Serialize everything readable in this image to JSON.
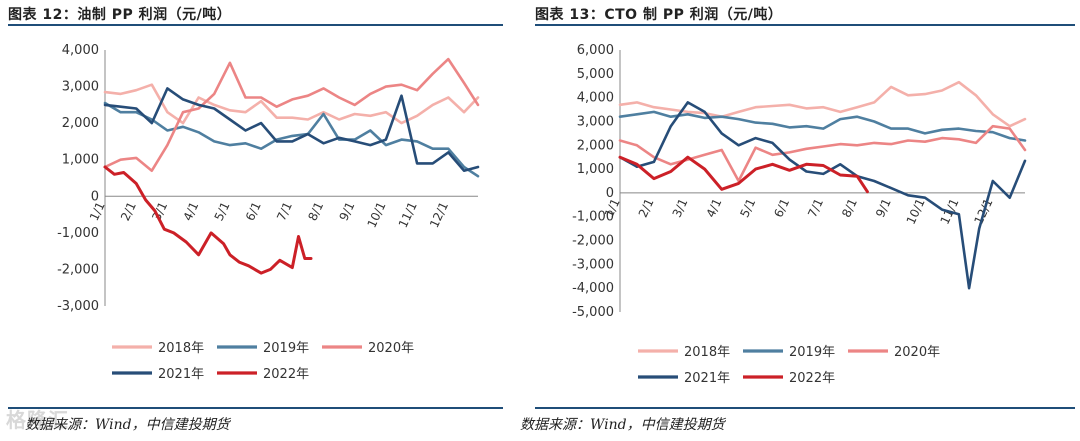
{
  "left": {
    "title": "图表 12：油制 PP 利润（元/吨）",
    "source": "数据来源：Wind，中信建投期货"
  },
  "right": {
    "title": "图表 13：CTO 制 PP 利润（元/吨）",
    "source": "数据来源：Wind，中信建投期货"
  },
  "watermark": "格隆汇",
  "chart_data": [
    {
      "type": "line",
      "title": "油制PP利润（元/吨）",
      "xlabel": "",
      "ylabel": "",
      "ylim": [
        -3000,
        4000
      ],
      "yticks": [
        -3000,
        -2000,
        -1000,
        0,
        1000,
        2000,
        3000,
        4000
      ],
      "ytick_labels": [
        "-3,000",
        "-2,000",
        "-1,000",
        "0",
        "1,000",
        "2,000",
        "3,000",
        "4,000"
      ],
      "x_categories": [
        "1/1",
        "2/1",
        "3/1",
        "4/1",
        "5/1",
        "6/1",
        "7/1",
        "8/1",
        "9/1",
        "10/1",
        "11/1",
        "12/1"
      ],
      "x_tick_pos": [
        0,
        1,
        2,
        3,
        4,
        5,
        6,
        7,
        8,
        9,
        10,
        11
      ],
      "xlim": [
        0,
        11.95
      ],
      "legend_position": "bottom",
      "series": [
        {
          "name": "2018年",
          "color": "#f4b0aa",
          "x": [
            0,
            0.5,
            1,
            1.5,
            2,
            2.5,
            3,
            3.5,
            4,
            4.5,
            5,
            5.5,
            6,
            6.5,
            7,
            7.5,
            8,
            8.5,
            9,
            9.5,
            10,
            10.5,
            11,
            11.5,
            11.95
          ],
          "values": [
            2850,
            2800,
            2900,
            3050,
            2300,
            2000,
            2700,
            2500,
            2350,
            2300,
            2600,
            2150,
            2150,
            2100,
            2300,
            2100,
            2250,
            2200,
            2300,
            2000,
            2200,
            2500,
            2700,
            2300,
            2700
          ]
        },
        {
          "name": "2019年",
          "color": "#4f7fa0",
          "x": [
            0,
            0.5,
            1,
            1.5,
            2,
            2.5,
            3,
            3.5,
            4,
            4.5,
            5,
            5.5,
            6,
            6.5,
            7,
            7.5,
            8,
            8.5,
            9,
            9.5,
            10,
            10.5,
            11,
            11.5,
            11.95
          ],
          "values": [
            2550,
            2300,
            2300,
            2100,
            1800,
            1900,
            1750,
            1500,
            1400,
            1450,
            1300,
            1550,
            1650,
            1700,
            2250,
            1550,
            1550,
            1800,
            1400,
            1550,
            1500,
            1300,
            1300,
            800,
            550
          ]
        },
        {
          "name": "2020年",
          "color": "#ec8585",
          "x": [
            0,
            0.5,
            1,
            1.5,
            2,
            2.5,
            3,
            3.5,
            4,
            4.5,
            5,
            5.5,
            6,
            6.5,
            7,
            7.5,
            8,
            8.5,
            9,
            9.5,
            10,
            10.5,
            11,
            11.5,
            11.95
          ],
          "values": [
            800,
            1000,
            1050,
            700,
            1400,
            2300,
            2400,
            2800,
            3650,
            2700,
            2700,
            2450,
            2650,
            2750,
            2950,
            2700,
            2500,
            2800,
            3000,
            3050,
            2900,
            3350,
            3750,
            3100,
            2500
          ]
        },
        {
          "name": "2021年",
          "color": "#274d78",
          "x": [
            0,
            0.5,
            1,
            1.5,
            2,
            2.5,
            3,
            3.5,
            4,
            4.5,
            5,
            5.5,
            6,
            6.5,
            7,
            7.5,
            8,
            8.5,
            9,
            9.5,
            10,
            10.5,
            11,
            11.5,
            11.95
          ],
          "values": [
            2500,
            2450,
            2400,
            2000,
            2950,
            2650,
            2500,
            2400,
            2100,
            1800,
            2000,
            1500,
            1500,
            1700,
            1450,
            1600,
            1500,
            1400,
            1550,
            2750,
            900,
            900,
            1200,
            700,
            800
          ]
        },
        {
          "name": "2022年",
          "color": "#cc2027",
          "x": [
            0,
            0.3,
            0.6,
            1,
            1.3,
            1.6,
            1.9,
            2.2,
            2.6,
            3,
            3.4,
            3.8,
            4,
            4.3,
            4.6,
            5,
            5.3,
            5.6,
            6,
            6.2,
            6.4,
            6.6
          ],
          "values": [
            800,
            600,
            650,
            350,
            -100,
            -400,
            -900,
            -1000,
            -1250,
            -1600,
            -1000,
            -1300,
            -1600,
            -1800,
            -1900,
            -2100,
            -2000,
            -1750,
            -1950,
            -1100,
            -1700,
            -1700
          ]
        }
      ]
    },
    {
      "type": "line",
      "title": "CTO制PP利润（元/吨）",
      "xlabel": "",
      "ylabel": "",
      "ylim": [
        -5000,
        6000
      ],
      "yticks": [
        -5000,
        -4000,
        -3000,
        -2000,
        -1000,
        0,
        1000,
        2000,
        3000,
        4000,
        5000,
        6000
      ],
      "ytick_labels": [
        "-5,000",
        "-4,000",
        "-3,000",
        "-2,000",
        "-1,000",
        "0",
        "1,000",
        "2,000",
        "3,000",
        "4,000",
        "5,000",
        "6,000"
      ],
      "x_categories": [
        "1/1",
        "2/1",
        "3/1",
        "4/1",
        "5/1",
        "6/1",
        "7/1",
        "8/1",
        "9/1",
        "10/1",
        "11/1",
        "12/1"
      ],
      "x_tick_pos": [
        0,
        1,
        2,
        3,
        4,
        5,
        6,
        7,
        8,
        9,
        10,
        11
      ],
      "xlim": [
        0,
        11.95
      ],
      "legend_position": "bottom",
      "series": [
        {
          "name": "2018年",
          "color": "#f4b0aa",
          "x": [
            0,
            0.5,
            1,
            1.5,
            2,
            2.5,
            3,
            3.5,
            4,
            4.5,
            5,
            5.5,
            6,
            6.5,
            7,
            7.5,
            8,
            8.5,
            9,
            9.5,
            10,
            10.5,
            11,
            11.5,
            11.95
          ],
          "values": [
            3700,
            3800,
            3600,
            3500,
            3400,
            3350,
            3200,
            3400,
            3600,
            3650,
            3700,
            3550,
            3600,
            3400,
            3600,
            3800,
            4450,
            4100,
            4150,
            4300,
            4650,
            4100,
            3300,
            2800,
            3100
          ]
        },
        {
          "name": "2019年",
          "color": "#4f7fa0",
          "x": [
            0,
            0.5,
            1,
            1.5,
            2,
            2.5,
            3,
            3.5,
            4,
            4.5,
            5,
            5.5,
            6,
            6.5,
            7,
            7.5,
            8,
            8.5,
            9,
            9.5,
            10,
            10.5,
            11,
            11.5,
            11.95
          ],
          "values": [
            3200,
            3300,
            3400,
            3200,
            3300,
            3150,
            3200,
            3100,
            2950,
            2900,
            2750,
            2800,
            2700,
            3100,
            3200,
            3000,
            2700,
            2700,
            2500,
            2650,
            2700,
            2600,
            2550,
            2300,
            2200
          ]
        },
        {
          "name": "2020年",
          "color": "#ec8585",
          "x": [
            0,
            0.5,
            1,
            1.5,
            2,
            2.5,
            3,
            3.5,
            4,
            4.5,
            5,
            5.5,
            6,
            6.5,
            7,
            7.5,
            8,
            8.5,
            9,
            9.5,
            10,
            10.5,
            11,
            11.5,
            11.95
          ],
          "values": [
            2200,
            2000,
            1500,
            1200,
            1400,
            1600,
            1800,
            500,
            1900,
            1600,
            1700,
            1850,
            1950,
            2050,
            2000,
            2100,
            2050,
            2200,
            2150,
            2300,
            2250,
            2100,
            2800,
            2700,
            1800
          ]
        },
        {
          "name": "2021年",
          "color": "#274d78",
          "x": [
            0,
            0.5,
            1,
            1.5,
            2,
            2.5,
            3,
            3.5,
            4,
            4.5,
            5,
            5.5,
            6,
            6.5,
            7,
            7.5,
            8,
            8.5,
            9,
            9.5,
            10,
            10.3,
            10.6,
            11,
            11.5,
            11.95
          ],
          "values": [
            1500,
            1100,
            1300,
            2800,
            3800,
            3400,
            2500,
            2000,
            2300,
            2100,
            1400,
            900,
            800,
            1200,
            700,
            500,
            200,
            -100,
            -200,
            -700,
            -900,
            -4000,
            -1500,
            500,
            -200,
            1350
          ]
        },
        {
          "name": "2022年",
          "color": "#cc2027",
          "x": [
            0,
            0.5,
            1,
            1.5,
            2,
            2.5,
            3,
            3.5,
            4,
            4.5,
            5,
            5.5,
            6,
            6.5,
            7,
            7.3
          ],
          "values": [
            1500,
            1200,
            600,
            900,
            1500,
            1000,
            150,
            400,
            1000,
            1200,
            950,
            1200,
            1150,
            750,
            700,
            50
          ]
        }
      ]
    }
  ]
}
